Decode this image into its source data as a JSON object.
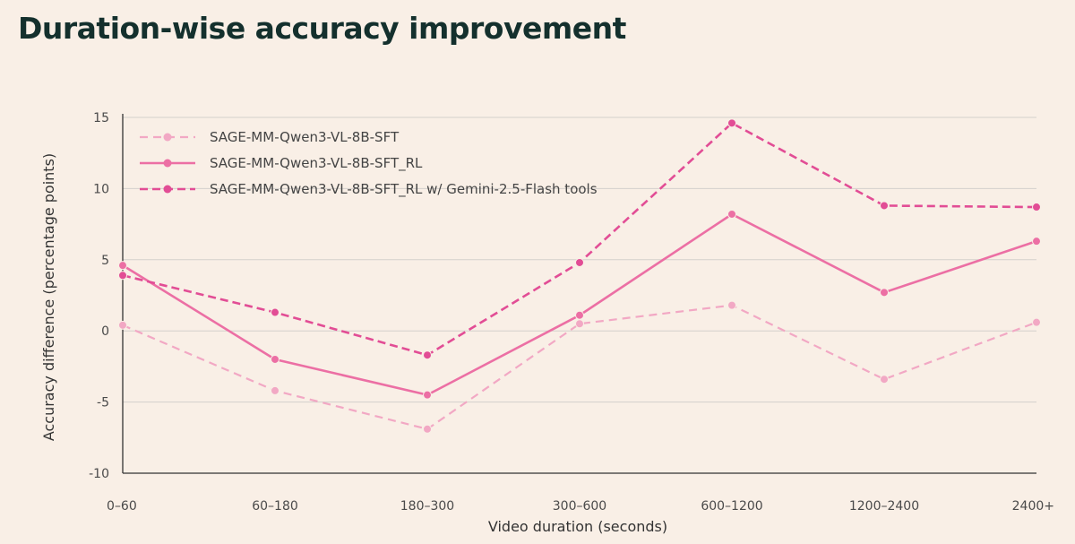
{
  "chart_data": {
    "type": "line",
    "title": "Duration-wise accuracy improvement",
    "xlabel": "Video duration (seconds)",
    "ylabel": "Accuracy difference (percentage points)",
    "categories": [
      "0–60",
      "60–180",
      "180–300",
      "300–600",
      "600–1200",
      "1200–2400",
      "2400+"
    ],
    "ylim": [
      -10,
      15
    ],
    "yticks": [
      15,
      10,
      5,
      0,
      -5,
      -10
    ],
    "ytick_labels": [
      "15",
      "10",
      "5",
      "0",
      "-5",
      "-10"
    ],
    "grid": true,
    "legend_position": "top-left",
    "series": [
      {
        "name": "SAGE-MM-Qwen3-VL-8B-SFT",
        "values": [
          0.4,
          -4.2,
          -6.9,
          0.5,
          1.8,
          -3.4,
          0.6
        ],
        "color": "#f2a8c4",
        "style": "dashed-light"
      },
      {
        "name": "SAGE-MM-Qwen3-VL-8B-SFT_RL",
        "values": [
          4.6,
          -2.0,
          -4.5,
          1.1,
          8.2,
          2.7,
          6.3
        ],
        "color": "#ec6fa4",
        "style": "solid"
      },
      {
        "name": "SAGE-MM-Qwen3-VL-8B-SFT_RL w/ Gemini-2.5-Flash tools",
        "values": [
          3.9,
          1.3,
          -1.7,
          4.8,
          14.6,
          8.8,
          8.7
        ],
        "color": "#e24d95",
        "style": "dashed"
      }
    ]
  },
  "colors": {
    "background": "#f9efe6",
    "grid": "#d4d0cc",
    "axis": "#333333",
    "title": "#14302d"
  }
}
